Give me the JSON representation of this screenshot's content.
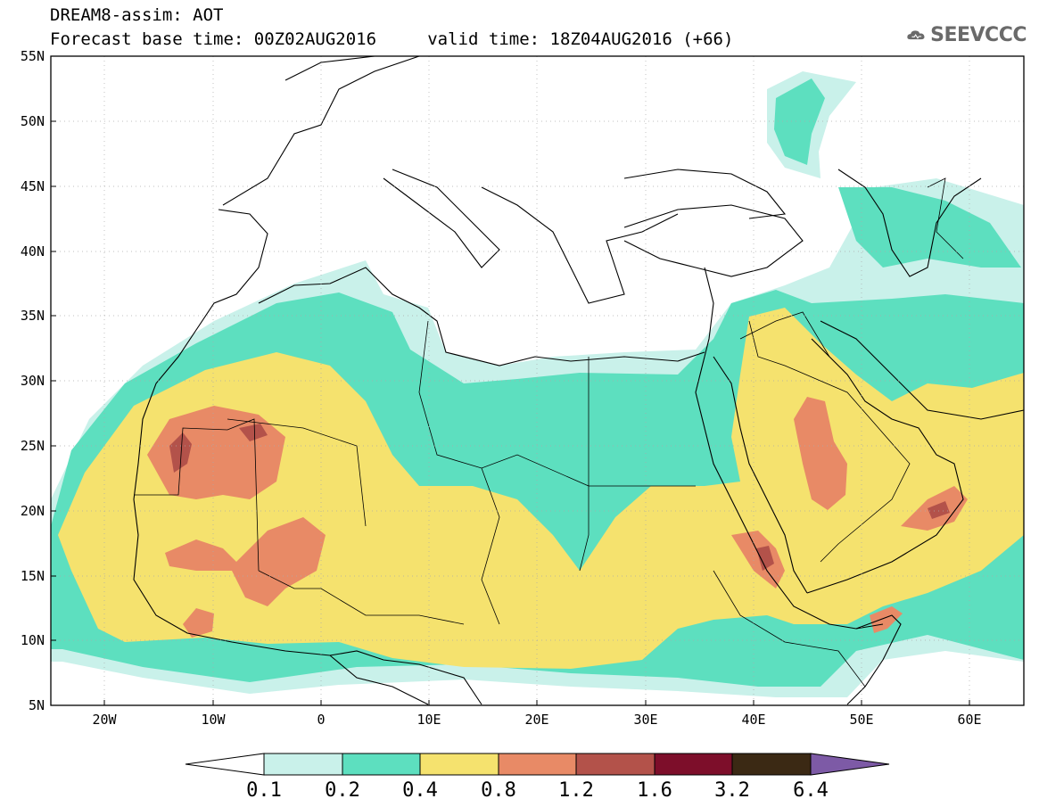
{
  "header": {
    "line1": "DREAM8-assim: AOT",
    "line2": "Forecast base time: 00Z02AUG2016     valid time: 18Z04AUG2016 (+66)"
  },
  "logo": {
    "icon": "cloud-icon",
    "text": "SEEVCCC"
  },
  "map": {
    "lat_labels": [
      "55N",
      "50N",
      "45N",
      "40N",
      "35N",
      "30N",
      "25N",
      "20N",
      "15N",
      "10N",
      "5N"
    ],
    "lon_labels": [
      "20W",
      "10W",
      "0",
      "10E",
      "20E",
      "30E",
      "40E",
      "50E",
      "60E"
    ]
  },
  "colorbar": {
    "ticks": [
      "0.1",
      "0.2",
      "0.4",
      "0.8",
      "1.2",
      "1.6",
      "3.2",
      "6.4"
    ],
    "colors": [
      "#ffffff",
      "#c9f1ea",
      "#5ddfbf",
      "#f5e26e",
      "#e88a66",
      "#b3524a",
      "#7d0e2a",
      "#3b2914",
      "#7d5aa6"
    ]
  }
}
